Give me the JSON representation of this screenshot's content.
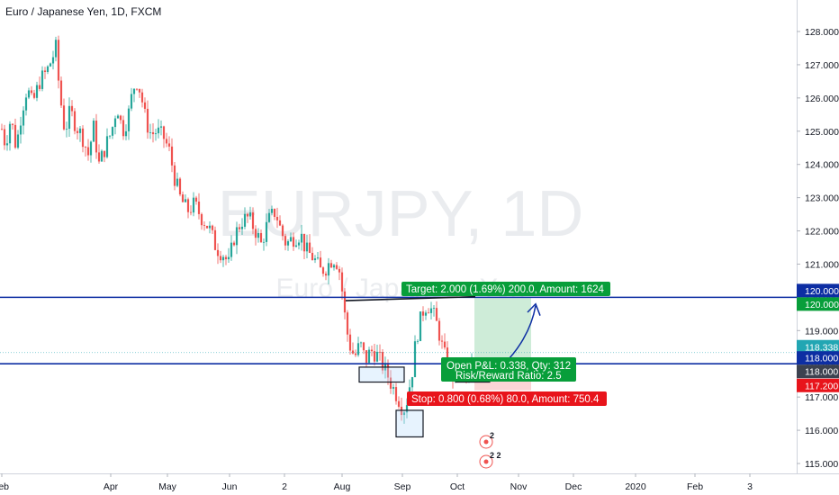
{
  "header": {
    "title": "Euro / Japanese Yen, 1D, FXCM"
  },
  "watermark": {
    "symbol": "EURJPY, 1D",
    "name": "Euro / Japanese Yen"
  },
  "chart_data": {
    "type": "candlestick",
    "symbol": "EURJPY",
    "interval": "1D",
    "source": "FXCM",
    "ylim": [
      114.85,
      128.8
    ],
    "yticks": [
      "128.000",
      "127.000",
      "126.000",
      "125.000",
      "124.000",
      "123.000",
      "122.000",
      "121.000",
      "120.000",
      "119.000",
      "118.000",
      "117.000",
      "116.000",
      "115.000"
    ],
    "xticks": [
      "Feb",
      "Apr",
      "May",
      "Jun",
      "2",
      "Aug",
      "Sep",
      "Oct",
      "Nov",
      "Dec",
      "2020",
      "Feb",
      "3"
    ],
    "grid": false,
    "horizontal_lines": [
      {
        "value": 120.0,
        "color": "#0d2ea3"
      },
      {
        "value": 118.0,
        "color": "#0d2ea3"
      }
    ],
    "price_labels": [
      {
        "value": 120.0,
        "text": "120.000",
        "bg": "#0d2ea3"
      },
      {
        "value": 120.0,
        "text": "120.000",
        "bg": "#089e3a"
      },
      {
        "value": 118.338,
        "text": "118.338",
        "bg": "#22a6b3"
      },
      {
        "value": 118.0,
        "text": "118.000",
        "bg": "#0d2ea3"
      },
      {
        "value": 118.0,
        "text": "118.000",
        "bg": "#3c4250"
      },
      {
        "value": 117.2,
        "text": "117.200",
        "bg": "#e8141b"
      }
    ],
    "position": {
      "side": "long",
      "entry": 118.0,
      "target": 120.0,
      "stop": 117.2,
      "target_label": "Target: 2.000 (1.69%) 200.0, Amount: 1624",
      "pnl_label": "Open P&L: 0.338, Qty: 312",
      "rr_label": "Risk/Reward Ratio: 2.5",
      "stop_label": "Stop: 0.800 (0.68%) 80.0, Amount: 750.4"
    },
    "candles_summary": {
      "start_value": 125.3,
      "high_value": 127.5,
      "low_value": 115.86,
      "last_close": 118.338,
      "trend": "downtrend from Mar high 127.5 to Aug–Sep lows near 116, rebound to ~120 mid-Sep, pullback to ~118"
    },
    "markers": [
      {
        "text": "2"
      },
      {
        "text": "2 2"
      }
    ],
    "colors": {
      "up": "#26a69a",
      "down": "#ef5350",
      "target": "#089e3a",
      "stop": "#e8141b",
      "line": "#0d2ea3",
      "current": "#22a6b3"
    }
  }
}
